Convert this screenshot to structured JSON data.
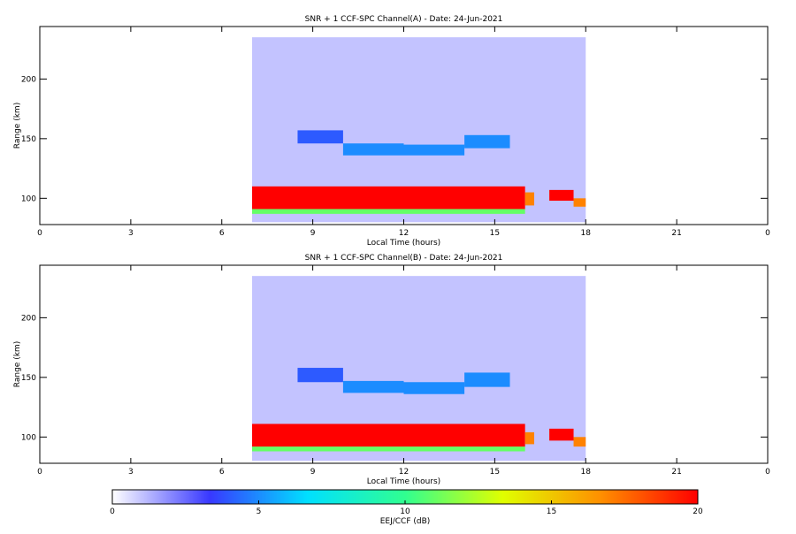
{
  "chart_data": [
    {
      "type": "heatmap",
      "title": "SNR + 1 CCF-SPC Channel(A) - Date: 24-Jun-2021",
      "x_label": "Local Time (hours)",
      "y_label": "Range (km)",
      "xlim": [
        0,
        24
      ],
      "xticks": [
        0,
        3,
        6,
        9,
        12,
        15,
        18,
        21,
        {
          "value": 24,
          "label": "0"
        }
      ],
      "ylim": [
        78,
        244
      ],
      "yticks": [
        100,
        150,
        200
      ],
      "cells": [
        {
          "x": [
            7,
            18
          ],
          "y": [
            80,
            235
          ],
          "value": 1
        },
        {
          "x": [
            8.5,
            10
          ],
          "y": [
            146,
            157
          ],
          "value": 4
        },
        {
          "x": [
            10,
            12
          ],
          "y": [
            136,
            146
          ],
          "value": 5
        },
        {
          "x": [
            12,
            14
          ],
          "y": [
            136,
            145
          ],
          "value": 5
        },
        {
          "x": [
            14,
            15.5
          ],
          "y": [
            142,
            153
          ],
          "value": 5
        },
        {
          "x": [
            7,
            16
          ],
          "y": [
            87,
            91
          ],
          "value": 11
        },
        {
          "x": [
            7,
            16
          ],
          "y": [
            91,
            110
          ],
          "value": 20
        },
        {
          "x": [
            16,
            16.3
          ],
          "y": [
            94,
            105
          ],
          "value": 17
        },
        {
          "x": [
            16.8,
            17.6
          ],
          "y": [
            98,
            107
          ],
          "value": 20
        },
        {
          "x": [
            17.6,
            18
          ],
          "y": [
            93,
            100
          ],
          "value": 17
        }
      ]
    },
    {
      "type": "heatmap",
      "title": "SNR + 1 CCF-SPC Channel(B) - Date: 24-Jun-2021",
      "x_label": "Local Time (hours)",
      "y_label": "Range (km)",
      "xlim": [
        0,
        24
      ],
      "xticks": [
        0,
        3,
        6,
        9,
        12,
        15,
        18,
        21,
        {
          "value": 24,
          "label": "0"
        }
      ],
      "ylim": [
        78,
        244
      ],
      "yticks": [
        100,
        150,
        200
      ],
      "cells": [
        {
          "x": [
            7,
            18
          ],
          "y": [
            80,
            235
          ],
          "value": 1
        },
        {
          "x": [
            8.5,
            10
          ],
          "y": [
            146,
            158
          ],
          "value": 4
        },
        {
          "x": [
            10,
            12
          ],
          "y": [
            137,
            147
          ],
          "value": 5
        },
        {
          "x": [
            12,
            14
          ],
          "y": [
            136,
            146
          ],
          "value": 5
        },
        {
          "x": [
            14,
            15.5
          ],
          "y": [
            142,
            154
          ],
          "value": 5
        },
        {
          "x": [
            7,
            16
          ],
          "y": [
            88,
            92
          ],
          "value": 11
        },
        {
          "x": [
            7,
            16
          ],
          "y": [
            92,
            111
          ],
          "value": 20
        },
        {
          "x": [
            16,
            16.3
          ],
          "y": [
            94,
            104
          ],
          "value": 17
        },
        {
          "x": [
            16.8,
            17.6
          ],
          "y": [
            97,
            107
          ],
          "value": 20
        },
        {
          "x": [
            17.6,
            18
          ],
          "y": [
            92,
            100
          ],
          "value": 17
        }
      ]
    }
  ],
  "colorbar": {
    "label": "EEJ/CCF (dB)",
    "lim": [
      0,
      20
    ],
    "ticks": [
      0,
      5,
      10,
      15,
      20
    ],
    "colormap": [
      "#ffffff",
      "#3838ff",
      "#00e0ff",
      "#30ff90",
      "#e0ff00",
      "#ff9000",
      "#ff0000"
    ]
  }
}
